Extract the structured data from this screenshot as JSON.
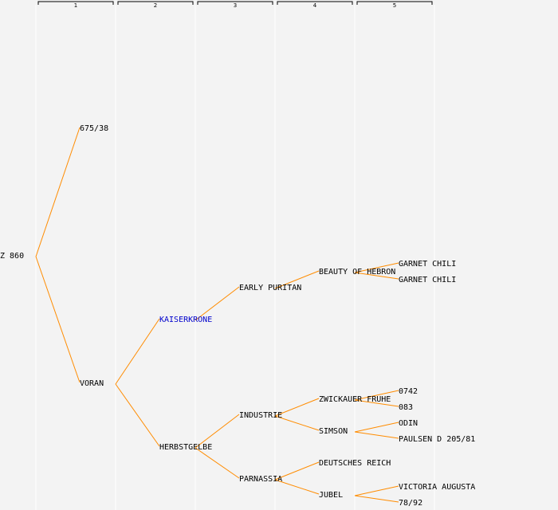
{
  "generation_header": [
    "1",
    "2",
    "3",
    "4",
    "5"
  ],
  "nodes": [
    {
      "id": "z860",
      "label": "Z 860",
      "generation": 0
    },
    {
      "id": "n675",
      "label": "675/38",
      "generation": 1
    },
    {
      "id": "voran",
      "label": "VORAN",
      "generation": 1
    },
    {
      "id": "kaiserkrone",
      "label": "KAISERKRONE",
      "generation": 2,
      "link": true
    },
    {
      "id": "herbstgelbe",
      "label": "HERBSTGELBE",
      "generation": 2
    },
    {
      "id": "early",
      "label": "EARLY PURITAN",
      "generation": 3
    },
    {
      "id": "industrie",
      "label": "INDUSTRIE",
      "generation": 3
    },
    {
      "id": "parnassia",
      "label": "PARNASSIA",
      "generation": 3
    },
    {
      "id": "beauty",
      "label": "BEAUTY OF HEBRON",
      "generation": 4
    },
    {
      "id": "zwickauer",
      "label": "ZWICKAUER FRUHE",
      "generation": 4
    },
    {
      "id": "simson",
      "label": "SIMSON",
      "generation": 4
    },
    {
      "id": "deutsches",
      "label": "DEUTSCHES REICH",
      "generation": 4
    },
    {
      "id": "jubel",
      "label": "JUBEL",
      "generation": 4
    },
    {
      "id": "garnet1",
      "label": "GARNET CHILI",
      "generation": 5
    },
    {
      "id": "garnet2",
      "label": "GARNET CHILI",
      "generation": 5
    },
    {
      "id": "n0742",
      "label": "0742",
      "generation": 5
    },
    {
      "id": "n083",
      "label": "083",
      "generation": 5
    },
    {
      "id": "odin",
      "label": "ODIN",
      "generation": 5
    },
    {
      "id": "paulsen",
      "label": "PAULSEN D 205/81",
      "generation": 5
    },
    {
      "id": "victoria",
      "label": "VICTORIA AUGUSTA",
      "generation": 5
    },
    {
      "id": "n7892",
      "label": "78/92",
      "generation": 5
    }
  ],
  "edges": [
    [
      "z860",
      "n675"
    ],
    [
      "z860",
      "voran"
    ],
    [
      "voran",
      "kaiserkrone"
    ],
    [
      "voran",
      "herbstgelbe"
    ],
    [
      "kaiserkrone",
      "early"
    ],
    [
      "herbstgelbe",
      "industrie"
    ],
    [
      "herbstgelbe",
      "parnassia"
    ],
    [
      "early",
      "beauty"
    ],
    [
      "industrie",
      "zwickauer"
    ],
    [
      "industrie",
      "simson"
    ],
    [
      "parnassia",
      "deutsches"
    ],
    [
      "parnassia",
      "jubel"
    ],
    [
      "beauty",
      "garnet1"
    ],
    [
      "beauty",
      "garnet2"
    ],
    [
      "zwickauer",
      "n0742"
    ],
    [
      "zwickauer",
      "n083"
    ],
    [
      "simson",
      "odin"
    ],
    [
      "simson",
      "paulsen"
    ],
    [
      "jubel",
      "victoria"
    ],
    [
      "jubel",
      "n7892"
    ]
  ],
  "colors": {
    "background": "#f3f3f3",
    "edge": "#ff8c00",
    "column_line": "#ffffff",
    "link": "#0000cc",
    "text": "#000000"
  }
}
